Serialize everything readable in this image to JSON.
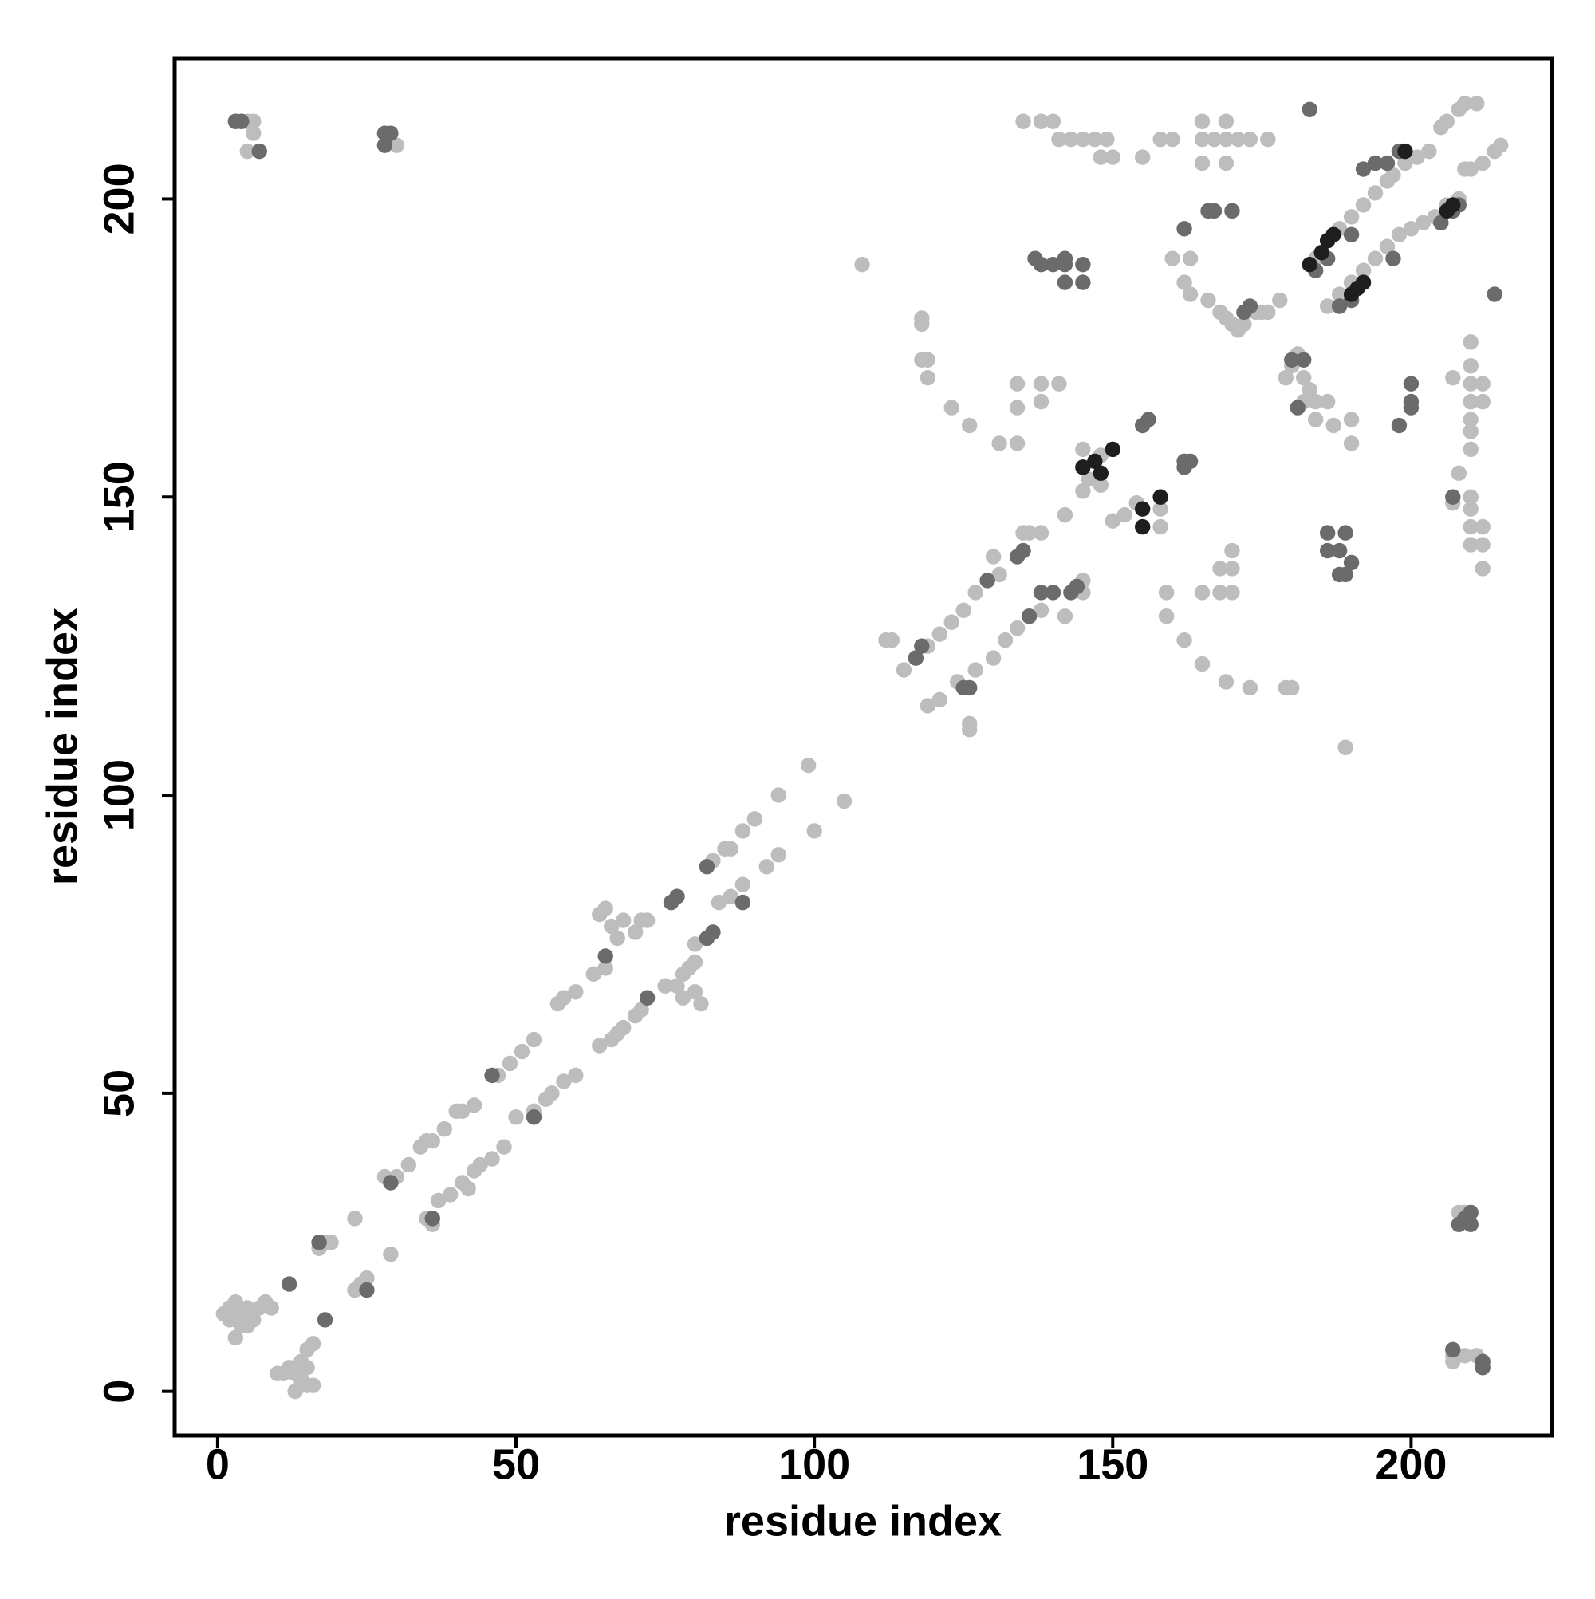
{
  "chart_data": {
    "type": "scatter",
    "x_label": "residue index",
    "y_label": "residue index",
    "xlim": [
      -7.2,
      223.6
    ],
    "ylim": [
      -7.4,
      223.6
    ],
    "xticks": [
      0,
      50,
      100,
      150,
      200
    ],
    "yticks": [
      0,
      50,
      100,
      150,
      200
    ],
    "series": [
      {
        "color": "#bdbdbd",
        "x": [
          1,
          2,
          3,
          4,
          5,
          6,
          3,
          5,
          7,
          8,
          9,
          3,
          2,
          4,
          13,
          14,
          15,
          12,
          13,
          14,
          15,
          16,
          15,
          14,
          11,
          10,
          16,
          17,
          18,
          19,
          23,
          24,
          25,
          23,
          28,
          30,
          32,
          34,
          35,
          36,
          38,
          40,
          41,
          43,
          47,
          49,
          51,
          53,
          57,
          58,
          60,
          63,
          65,
          64,
          65,
          66,
          67,
          68,
          70,
          71,
          72,
          76,
          78,
          77,
          79,
          80,
          78,
          81,
          80,
          83,
          85,
          86,
          88,
          90,
          94,
          99,
          29,
          35,
          36,
          37,
          39,
          41,
          42,
          43,
          44,
          46,
          48,
          50,
          53,
          55,
          56,
          58,
          60,
          64,
          66,
          67,
          68,
          70,
          71,
          75,
          80,
          84,
          86,
          88,
          92,
          94,
          100,
          105,
          108,
          112,
          113,
          115,
          117,
          119,
          121,
          123,
          125,
          127,
          129,
          131,
          119,
          121,
          124,
          126,
          126,
          127,
          130,
          132,
          134,
          136,
          138,
          142,
          145,
          145,
          135,
          136,
          138,
          130,
          142,
          145,
          146,
          148,
          145,
          150,
          152,
          154,
          158,
          158,
          148,
          118,
          118,
          118,
          119,
          119,
          123,
          126,
          131,
          134,
          134,
          134,
          138,
          138,
          141,
          159,
          159,
          162,
          165,
          169,
          173,
          180,
          179,
          170,
          168,
          165,
          168,
          170,
          170,
          135,
          138,
          140,
          143,
          141,
          145,
          147,
          149,
          148,
          150,
          155,
          158,
          160,
          165,
          165,
          165,
          167,
          169,
          169,
          169,
          171,
          173,
          176,
          160,
          163,
          162,
          163,
          166,
          168,
          169,
          170,
          171,
          172,
          174,
          176,
          175,
          178,
          180,
          179,
          181,
          182,
          183,
          182,
          184,
          186,
          184,
          187,
          190,
          190,
          184,
          186,
          188,
          190,
          192,
          194,
          196,
          197,
          199,
          201,
          203,
          205,
          206,
          208,
          209,
          211,
          186,
          188,
          190,
          192,
          194,
          196,
          198,
          200,
          202,
          204,
          206,
          208,
          210,
          212,
          214,
          215,
          209,
          207,
          210,
          210,
          210,
          210,
          212,
          212,
          210,
          210,
          210,
          208,
          207,
          210,
          210,
          210,
          212,
          210,
          212,
          212,
          208,
          209,
          207,
          209,
          211,
          207,
          5,
          6,
          6,
          5,
          30,
          29,
          189
        ],
        "y": [
          13,
          14,
          12,
          13,
          14,
          12,
          15,
          11,
          14,
          15,
          14,
          9,
          12,
          11,
          0,
          1,
          1,
          4,
          3,
          5,
          7,
          8,
          4,
          2,
          3,
          3,
          1,
          24,
          25,
          25,
          29,
          18,
          19,
          17,
          36,
          36,
          38,
          41,
          42,
          42,
          44,
          47,
          47,
          48,
          53,
          55,
          57,
          59,
          65,
          66,
          67,
          70,
          71,
          80,
          81,
          78,
          76,
          79,
          77,
          79,
          79,
          82,
          66,
          68,
          71,
          72,
          70,
          65,
          67,
          89,
          91,
          91,
          94,
          96,
          100,
          105,
          23,
          29,
          28,
          32,
          33,
          35,
          34,
          37,
          38,
          39,
          41,
          46,
          47,
          49,
          50,
          52,
          53,
          58,
          59,
          60,
          61,
          63,
          64,
          68,
          75,
          82,
          83,
          85,
          88,
          90,
          94,
          99,
          189,
          126,
          126,
          121,
          123,
          125,
          127,
          129,
          131,
          134,
          136,
          137,
          115,
          116,
          119,
          111,
          112,
          121,
          123,
          126,
          128,
          130,
          131,
          130,
          134,
          136,
          144,
          144,
          144,
          140,
          147,
          151,
          153,
          157,
          158,
          146,
          147,
          149,
          145,
          148,
          152,
          180,
          179,
          173,
          173,
          170,
          165,
          162,
          159,
          159,
          165,
          169,
          169,
          166,
          169,
          134,
          130,
          126,
          122,
          119,
          118,
          118,
          118,
          138,
          138,
          134,
          134,
          134,
          141,
          213,
          213,
          213,
          210,
          210,
          210,
          210,
          210,
          207,
          207,
          207,
          210,
          210,
          213,
          210,
          206,
          210,
          213,
          210,
          206,
          210,
          210,
          210,
          190,
          190,
          186,
          184,
          183,
          181,
          180,
          179,
          178,
          179,
          181,
          181,
          181,
          183,
          172,
          170,
          174,
          170,
          168,
          166,
          166,
          166,
          163,
          162,
          159,
          163,
          190,
          193,
          195,
          197,
          199,
          201,
          203,
          204,
          206,
          207,
          208,
          212,
          213,
          215,
          216,
          216,
          182,
          184,
          186,
          188,
          190,
          192,
          194,
          195,
          196,
          197,
          199,
          200,
          205,
          206,
          208,
          209,
          205,
          170,
          176,
          172,
          169,
          166,
          169,
          166,
          163,
          161,
          158,
          154,
          149,
          150,
          148,
          145,
          145,
          142,
          142,
          138,
          30,
          30,
          6,
          6,
          6,
          5,
          213,
          213,
          211,
          208,
          209,
          211,
          108
        ]
      },
      {
        "color": "#6b6b6b",
        "x": [
          3,
          4,
          7,
          28,
          29,
          28,
          12,
          18,
          17,
          25,
          29,
          36,
          46,
          53,
          65,
          72,
          76,
          77,
          83,
          82,
          82,
          88,
          118,
          117,
          125,
          126,
          129,
          136,
          135,
          134,
          138,
          140,
          143,
          144,
          137,
          138,
          140,
          142,
          142,
          145,
          142,
          145,
          155,
          156,
          162,
          162,
          163,
          167,
          166,
          170,
          162,
          173,
          172,
          188,
          189,
          190,
          189,
          186,
          186,
          188,
          183,
          180,
          182,
          181,
          198,
          200,
          200,
          200,
          207,
          214,
          208,
          207,
          205,
          198,
          196,
          194,
          192,
          184,
          186,
          190,
          188,
          190,
          197,
          207,
          212,
          212,
          210,
          210,
          208,
          209
        ],
        "y": [
          213,
          213,
          208,
          211,
          211,
          209,
          18,
          12,
          25,
          17,
          35,
          29,
          53,
          46,
          73,
          66,
          82,
          83,
          77,
          76,
          88,
          82,
          125,
          123,
          118,
          118,
          136,
          130,
          141,
          140,
          134,
          134,
          134,
          135,
          190,
          189,
          189,
          190,
          189,
          189,
          186,
          186,
          162,
          163,
          155,
          156,
          156,
          198,
          198,
          198,
          195,
          182,
          181,
          141,
          137,
          139,
          144,
          144,
          141,
          137,
          215,
          173,
          173,
          165,
          162,
          169,
          166,
          165,
          150,
          184,
          199,
          198,
          196,
          208,
          206,
          206,
          205,
          188,
          190,
          194,
          182,
          183,
          190,
          7,
          5,
          4,
          30,
          28,
          28,
          29
        ]
      },
      {
        "color": "#1e1e1e",
        "x": [
          145,
          148,
          150,
          147,
          155,
          155,
          158,
          183,
          185,
          186,
          187,
          199,
          206,
          207,
          190,
          191,
          192
        ],
        "y": [
          155,
          154,
          158,
          156,
          148,
          145,
          150,
          189,
          191,
          193,
          194,
          208,
          198,
          199,
          184,
          185,
          186
        ]
      }
    ]
  }
}
